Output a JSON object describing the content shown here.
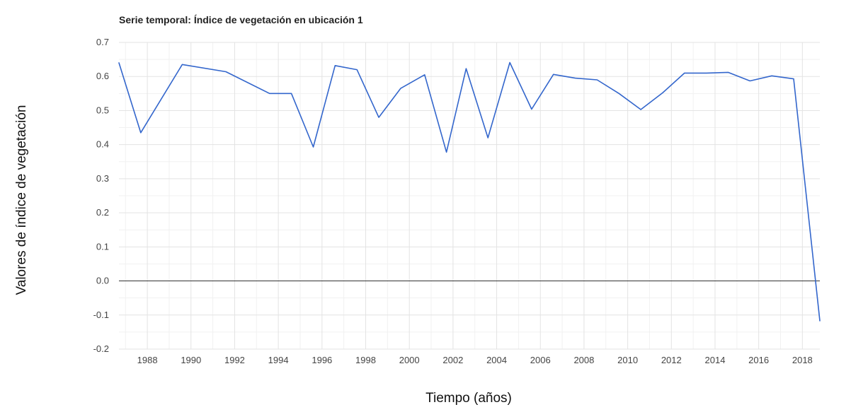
{
  "chart_data": {
    "type": "line",
    "title": "Serie temporal: Índice de vegetación en ubicación 1",
    "xlabel": "Tiempo (años)",
    "ylabel": "Valores de índice de vegetación",
    "xlim": [
      1986.7,
      2018.8
    ],
    "ylim": [
      -0.2,
      0.7
    ],
    "y_ticks": [
      "0.7",
      "0.6",
      "0.5",
      "0.4",
      "0.3",
      "0.2",
      "0.1",
      "0.0",
      "-0.1",
      "-0.2"
    ],
    "x_ticks": [
      "1988",
      "1990",
      "1992",
      "1994",
      "1996",
      "1998",
      "2000",
      "2002",
      "2004",
      "2006",
      "2008",
      "2010",
      "2012",
      "2014",
      "2016",
      "2018"
    ],
    "grid": true,
    "legend": "none",
    "line_color": "#3366cc",
    "series": [
      {
        "x": [
          1986.7,
          1987.7,
          1989.6,
          1991.6,
          1993.6,
          1994.6,
          1995.6,
          1996.6,
          1997.6,
          1998.6,
          1999.6,
          2000.7,
          2001.7,
          2002.6,
          2003.6,
          2004.6,
          2005.6,
          2006.6,
          2007.6,
          2008.6,
          2009.6,
          2010.6,
          2011.6,
          2012.6,
          2013.6,
          2014.6,
          2015.6,
          2016.6,
          2017.6,
          2018.8
        ],
        "y": [
          0.64,
          0.435,
          0.635,
          0.614,
          0.55,
          0.55,
          0.393,
          0.632,
          0.62,
          0.48,
          0.565,
          0.605,
          0.378,
          0.623,
          0.42,
          0.641,
          0.504,
          0.606,
          0.595,
          0.59,
          0.55,
          0.503,
          0.552,
          0.61,
          0.61,
          0.612,
          0.587,
          0.602,
          0.593,
          -0.117
        ]
      }
    ]
  }
}
